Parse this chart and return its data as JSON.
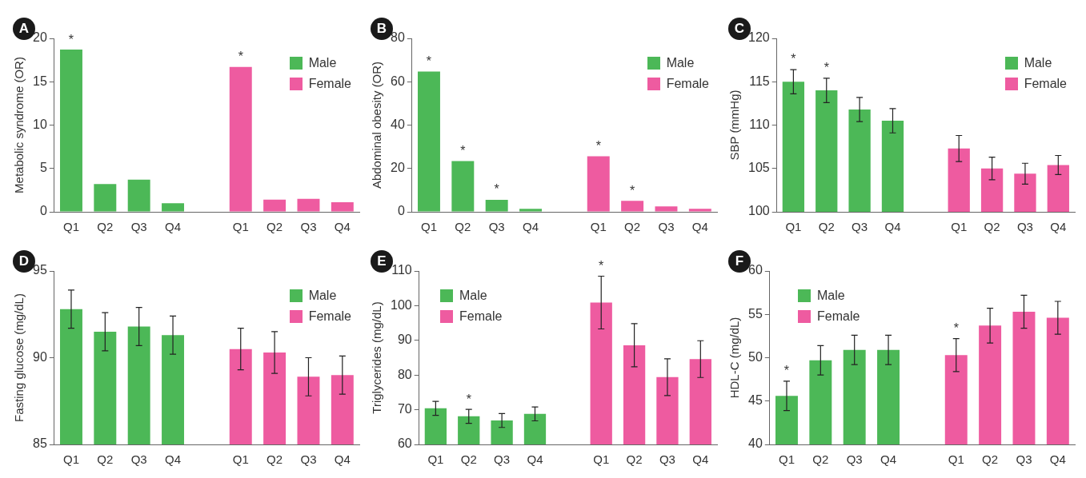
{
  "chart_data": [
    {
      "type": "bar",
      "title": "A",
      "ylabel": "Metabolic syndrome (OR)",
      "categories": [
        "Q1",
        "Q2",
        "Q3",
        "Q4",
        null,
        "Q1",
        "Q2",
        "Q3",
        "Q4"
      ],
      "ylim": [
        0,
        20
      ],
      "yticks": [
        0,
        5,
        10,
        15,
        20
      ],
      "legend": "top right",
      "series": [
        {
          "name": "Male",
          "color": "#4cb857",
          "values": [
            18.7,
            3.2,
            3.7,
            1.0,
            null,
            null,
            null,
            null,
            null
          ],
          "value_labels": [
            "*",
            null,
            null,
            null,
            null,
            null,
            null,
            null,
            null
          ]
        },
        {
          "name": "Female",
          "color": "#ee5ba0",
          "values": [
            null,
            null,
            null,
            null,
            null,
            16.7,
            1.4,
            1.5,
            1.1
          ],
          "value_labels": [
            null,
            null,
            null,
            null,
            null,
            "*",
            null,
            null,
            null
          ]
        }
      ]
    },
    {
      "type": "bar",
      "title": "B",
      "ylabel": "Abdominal obesity (OR)",
      "categories": [
        "Q1",
        "Q2",
        "Q3",
        "Q4",
        null,
        "Q1",
        "Q2",
        "Q3",
        "Q4"
      ],
      "ylim": [
        0,
        80
      ],
      "yticks": [
        0,
        20,
        40,
        60,
        80
      ],
      "legend": "top right",
      "series": [
        {
          "name": "Male",
          "color": "#4cb857",
          "values": [
            64.7,
            23.4,
            5.5,
            1.4,
            null,
            null,
            null,
            null,
            null
          ],
          "value_labels": [
            "*",
            "*",
            "*",
            null,
            null,
            null,
            null,
            null,
            null
          ]
        },
        {
          "name": "Female",
          "color": "#ee5ba0",
          "values": [
            null,
            null,
            null,
            null,
            null,
            25.6,
            5.1,
            2.5,
            1.4
          ],
          "value_labels": [
            null,
            null,
            null,
            null,
            null,
            "*",
            "*",
            null,
            null
          ]
        }
      ]
    },
    {
      "type": "bar",
      "title": "C",
      "ylabel": "SBP (mmHg)",
      "categories": [
        "Q1",
        "Q2",
        "Q3",
        "Q4",
        null,
        "Q1",
        "Q2",
        "Q3",
        "Q4"
      ],
      "ylim": [
        100,
        120
      ],
      "yticks": [
        100,
        105,
        110,
        115,
        120
      ],
      "legend": "top right",
      "series": [
        {
          "name": "Male",
          "color": "#4cb857",
          "values": [
            115.0,
            114.0,
            111.8,
            110.5,
            null,
            null,
            null,
            null,
            null
          ],
          "errors": [
            1.4,
            1.4,
            1.4,
            1.4,
            null,
            null,
            null,
            null,
            null
          ],
          "value_labels": [
            "*",
            "*",
            null,
            null,
            null,
            null,
            null,
            null,
            null
          ]
        },
        {
          "name": "Female",
          "color": "#ee5ba0",
          "values": [
            null,
            null,
            null,
            null,
            null,
            107.3,
            105.0,
            104.4,
            105.4
          ],
          "errors": [
            null,
            null,
            null,
            null,
            null,
            1.5,
            1.3,
            1.2,
            1.1
          ]
        }
      ]
    },
    {
      "type": "bar",
      "title": "D",
      "ylabel": "Fasting glucose (mg/dL)",
      "categories": [
        "Q1",
        "Q2",
        "Q3",
        "Q4",
        null,
        "Q1",
        "Q2",
        "Q3",
        "Q4"
      ],
      "ylim": [
        85,
        95
      ],
      "yticks": [
        85,
        90,
        95
      ],
      "legend": "top right",
      "series": [
        {
          "name": "Male",
          "color": "#4cb857",
          "values": [
            92.8,
            91.5,
            91.8,
            91.3,
            null,
            null,
            null,
            null,
            null
          ],
          "errors": [
            1.1,
            1.1,
            1.1,
            1.1,
            null,
            null,
            null,
            null,
            null
          ]
        },
        {
          "name": "Female",
          "color": "#ee5ba0",
          "values": [
            null,
            null,
            null,
            null,
            null,
            90.5,
            90.3,
            88.9,
            89.0
          ],
          "errors": [
            null,
            null,
            null,
            null,
            null,
            1.2,
            1.2,
            1.1,
            1.1
          ]
        }
      ]
    },
    {
      "type": "bar",
      "title": "E",
      "ylabel": "Triglycerides (mg/dL)",
      "categories": [
        "Q1",
        "Q2",
        "Q3",
        "Q4",
        null,
        "Q1",
        "Q2",
        "Q3",
        "Q4"
      ],
      "ylim": [
        60,
        110
      ],
      "yticks": [
        60,
        70,
        80,
        90,
        100,
        110
      ],
      "legend": "top left",
      "series": [
        {
          "name": "Male",
          "color": "#4cb857",
          "values": [
            70.4,
            68.1,
            66.9,
            68.8,
            null,
            null,
            null,
            null,
            null
          ],
          "errors": [
            2,
            2,
            2,
            2,
            null,
            null,
            null,
            null,
            null
          ],
          "value_labels": [
            null,
            "*",
            null,
            null,
            null,
            null,
            null,
            null,
            null
          ]
        },
        {
          "name": "Female",
          "color": "#ee5ba0",
          "values": [
            null,
            null,
            null,
            null,
            null,
            100.9,
            88.6,
            79.4,
            84.6
          ],
          "errors": [
            null,
            null,
            null,
            null,
            null,
            7.6,
            6.2,
            5.3,
            5.3
          ],
          "value_labels": [
            null,
            null,
            null,
            null,
            null,
            "*",
            null,
            null,
            null
          ]
        }
      ]
    },
    {
      "type": "bar",
      "title": "F",
      "ylabel": "HDL-C (mg/dL)",
      "categories": [
        "Q1",
        "Q2",
        "Q3",
        "Q4",
        null,
        "Q1",
        "Q2",
        "Q3",
        "Q4"
      ],
      "ylim": [
        40,
        60
      ],
      "yticks": [
        40,
        45,
        50,
        55,
        60
      ],
      "legend": "top left",
      "series": [
        {
          "name": "Male",
          "color": "#4cb857",
          "values": [
            45.6,
            49.7,
            50.9,
            50.9,
            null,
            null,
            null,
            null,
            null
          ],
          "errors": [
            1.7,
            1.7,
            1.7,
            1.7,
            null,
            null,
            null,
            null,
            null
          ],
          "value_labels": [
            "*",
            null,
            null,
            null,
            null,
            null,
            null,
            null,
            null
          ]
        },
        {
          "name": "Female",
          "color": "#ee5ba0",
          "values": [
            null,
            null,
            null,
            null,
            null,
            50.3,
            53.7,
            55.3,
            54.6
          ],
          "errors": [
            null,
            null,
            null,
            null,
            null,
            1.9,
            2.0,
            1.9,
            1.9
          ],
          "value_labels": [
            null,
            null,
            null,
            null,
            null,
            "*",
            null,
            null,
            null
          ]
        }
      ]
    }
  ]
}
